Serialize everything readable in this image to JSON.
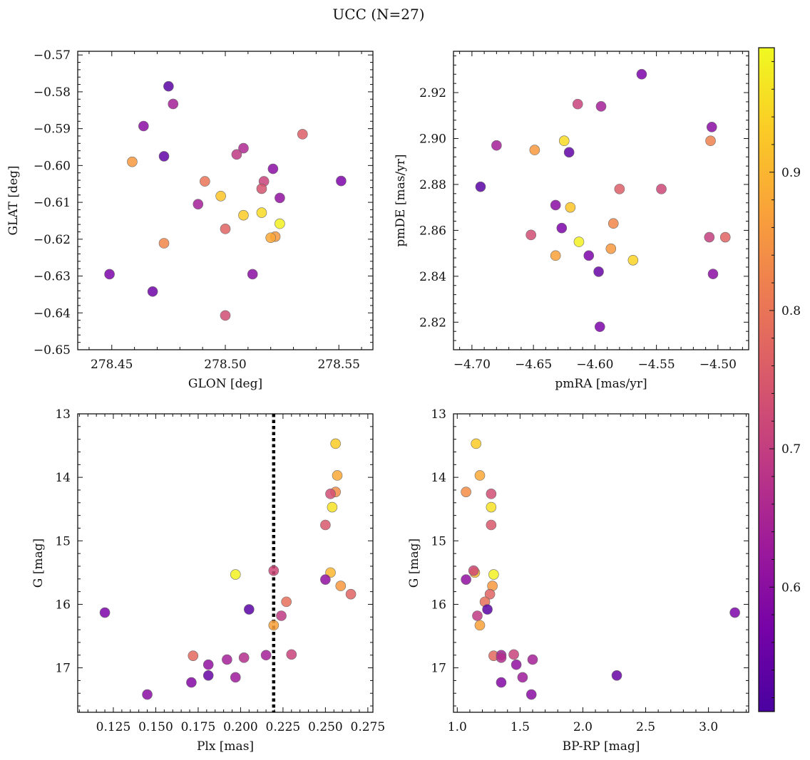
{
  "title": "UCC (N=27)",
  "colorbar": {
    "colormap": "plasma",
    "range": [
      0.51,
      0.99
    ],
    "ticks": [
      0.6,
      0.7,
      0.8,
      0.9
    ]
  },
  "chart_data": [
    {
      "type": "scatter",
      "xlabel": "GLON [deg]",
      "ylabel": "GLAT [deg]",
      "xlim": [
        278.435,
        278.565
      ],
      "ylim": [
        -0.65,
        -0.569
      ],
      "y_inverted": false,
      "xticks": [
        278.45,
        278.5,
        278.55
      ],
      "xtick_labels": [
        "278.45",
        "278.50",
        "278.55"
      ],
      "yticks": [
        -0.65,
        -0.64,
        -0.63,
        -0.62,
        -0.61,
        -0.6,
        -0.59,
        -0.58,
        -0.57
      ],
      "ytick_labels": [
        "−0.65",
        "−0.64",
        "−0.63",
        "−0.62",
        "−0.61",
        "−0.60",
        "−0.59",
        "−0.58",
        "−0.57"
      ],
      "points": [
        {
          "x": 278.475,
          "y": -0.5785,
          "c": 0.53
        },
        {
          "x": 278.477,
          "y": -0.5833,
          "c": 0.64
        },
        {
          "x": 278.464,
          "y": -0.5893,
          "c": 0.6
        },
        {
          "x": 278.534,
          "y": -0.5915,
          "c": 0.76
        },
        {
          "x": 278.508,
          "y": -0.5953,
          "c": 0.66
        },
        {
          "x": 278.505,
          "y": -0.597,
          "c": 0.69
        },
        {
          "x": 278.473,
          "y": -0.5975,
          "c": 0.54
        },
        {
          "x": 278.459,
          "y": -0.599,
          "c": 0.86
        },
        {
          "x": 278.521,
          "y": -0.6009,
          "c": 0.6
        },
        {
          "x": 278.491,
          "y": -0.6043,
          "c": 0.8
        },
        {
          "x": 278.517,
          "y": -0.6043,
          "c": 0.71
        },
        {
          "x": 278.551,
          "y": -0.6042,
          "c": 0.58
        },
        {
          "x": 278.516,
          "y": -0.6063,
          "c": 0.74
        },
        {
          "x": 278.498,
          "y": -0.6083,
          "c": 0.92
        },
        {
          "x": 278.524,
          "y": -0.6088,
          "c": 0.61
        },
        {
          "x": 278.488,
          "y": -0.6105,
          "c": 0.64
        },
        {
          "x": 278.508,
          "y": -0.6135,
          "c": 0.93
        },
        {
          "x": 278.516,
          "y": -0.6128,
          "c": 0.95
        },
        {
          "x": 278.524,
          "y": -0.6158,
          "c": 0.98
        },
        {
          "x": 278.5,
          "y": -0.6172,
          "c": 0.77
        },
        {
          "x": 278.522,
          "y": -0.6193,
          "c": 0.86
        },
        {
          "x": 278.52,
          "y": -0.6196,
          "c": 0.88
        },
        {
          "x": 278.473,
          "y": -0.6211,
          "c": 0.83
        },
        {
          "x": 278.449,
          "y": -0.6295,
          "c": 0.58
        },
        {
          "x": 278.512,
          "y": -0.6295,
          "c": 0.6
        },
        {
          "x": 278.468,
          "y": -0.6342,
          "c": 0.56
        },
        {
          "x": 278.5,
          "y": -0.6407,
          "c": 0.73
        }
      ]
    },
    {
      "type": "scatter",
      "xlabel": "pmRA [mas/yr]",
      "ylabel": "pmDE [mas/yr]",
      "xlim": [
        -4.715,
        -4.475
      ],
      "ylim": [
        2.808,
        2.938
      ],
      "y_inverted": false,
      "xticks": [
        -4.7,
        -4.65,
        -4.6,
        -4.55,
        -4.5
      ],
      "xtick_labels": [
        "−4.70",
        "−4.65",
        "−4.60",
        "−4.55",
        "−4.50"
      ],
      "yticks": [
        2.82,
        2.84,
        2.86,
        2.88,
        2.9,
        2.92
      ],
      "ytick_labels": [
        "2.82",
        "2.84",
        "2.86",
        "2.88",
        "2.90",
        "2.92"
      ],
      "points": [
        {
          "x": -4.562,
          "y": 2.928,
          "c": 0.58
        },
        {
          "x": -4.614,
          "y": 2.915,
          "c": 0.71
        },
        {
          "x": -4.595,
          "y": 2.914,
          "c": 0.64
        },
        {
          "x": -4.505,
          "y": 2.905,
          "c": 0.6
        },
        {
          "x": -4.506,
          "y": 2.899,
          "c": 0.82
        },
        {
          "x": -4.625,
          "y": 2.899,
          "c": 0.95
        },
        {
          "x": -4.68,
          "y": 2.897,
          "c": 0.64
        },
        {
          "x": -4.649,
          "y": 2.895,
          "c": 0.86
        },
        {
          "x": -4.621,
          "y": 2.894,
          "c": 0.54
        },
        {
          "x": -4.693,
          "y": 2.879,
          "c": 0.53
        },
        {
          "x": -4.546,
          "y": 2.878,
          "c": 0.72
        },
        {
          "x": -4.58,
          "y": 2.878,
          "c": 0.76
        },
        {
          "x": -4.632,
          "y": 2.871,
          "c": 0.6
        },
        {
          "x": -4.62,
          "y": 2.87,
          "c": 0.92
        },
        {
          "x": -4.585,
          "y": 2.863,
          "c": 0.83
        },
        {
          "x": -4.627,
          "y": 2.861,
          "c": 0.58
        },
        {
          "x": -4.652,
          "y": 2.858,
          "c": 0.73
        },
        {
          "x": -4.507,
          "y": 2.857,
          "c": 0.7
        },
        {
          "x": -4.494,
          "y": 2.857,
          "c": 0.77
        },
        {
          "x": -4.613,
          "y": 2.855,
          "c": 0.98
        },
        {
          "x": -4.587,
          "y": 2.852,
          "c": 0.86
        },
        {
          "x": -4.632,
          "y": 2.849,
          "c": 0.87
        },
        {
          "x": -4.605,
          "y": 2.849,
          "c": 0.58
        },
        {
          "x": -4.569,
          "y": 2.847,
          "c": 0.94
        },
        {
          "x": -4.597,
          "y": 2.842,
          "c": 0.55
        },
        {
          "x": -4.504,
          "y": 2.841,
          "c": 0.6
        },
        {
          "x": -4.596,
          "y": 2.818,
          "c": 0.58
        }
      ]
    },
    {
      "type": "scatter",
      "xlabel": "Plx [mas]",
      "ylabel": "G [mag]",
      "xlim": [
        0.104,
        0.278
      ],
      "ylim": [
        13.0,
        17.7
      ],
      "y_inverted": true,
      "vline": {
        "x": 0.2195,
        "style": "dotted"
      },
      "xticks": [
        0.125,
        0.15,
        0.175,
        0.2,
        0.225,
        0.25,
        0.275
      ],
      "xtick_labels": [
        "0.125",
        "0.150",
        "0.175",
        "0.200",
        "0.225",
        "0.250",
        "0.275"
      ],
      "yticks": [
        13,
        14,
        15,
        16,
        17
      ],
      "ytick_labels": [
        "13",
        "14",
        "15",
        "16",
        "17"
      ],
      "points": [
        {
          "x": 0.256,
          "y": 13.47,
          "c": 0.93
        },
        {
          "x": 0.257,
          "y": 13.97,
          "c": 0.88
        },
        {
          "x": 0.256,
          "y": 14.23,
          "c": 0.84
        },
        {
          "x": 0.253,
          "y": 14.26,
          "c": 0.73
        },
        {
          "x": 0.254,
          "y": 14.47,
          "c": 0.96
        },
        {
          "x": 0.25,
          "y": 14.75,
          "c": 0.75
        },
        {
          "x": 0.197,
          "y": 15.53,
          "c": 0.98
        },
        {
          "x": 0.253,
          "y": 15.5,
          "c": 0.9
        },
        {
          "x": 0.25,
          "y": 15.61,
          "c": 0.61
        },
        {
          "x": 0.2195,
          "y": 15.47,
          "c": 0.72
        },
        {
          "x": 0.259,
          "y": 15.71,
          "c": 0.86
        },
        {
          "x": 0.265,
          "y": 15.84,
          "c": 0.77
        },
        {
          "x": 0.227,
          "y": 15.96,
          "c": 0.79
        },
        {
          "x": 0.205,
          "y": 16.08,
          "c": 0.53
        },
        {
          "x": 0.224,
          "y": 16.18,
          "c": 0.69
        },
        {
          "x": 0.12,
          "y": 16.13,
          "c": 0.58
        },
        {
          "x": 0.2195,
          "y": 16.33,
          "c": 0.87
        },
        {
          "x": 0.172,
          "y": 16.81,
          "c": 0.78
        },
        {
          "x": 0.23,
          "y": 16.79,
          "c": 0.71
        },
        {
          "x": 0.215,
          "y": 16.8,
          "c": 0.64
        },
        {
          "x": 0.202,
          "y": 16.84,
          "c": 0.67
        },
        {
          "x": 0.192,
          "y": 16.87,
          "c": 0.64
        },
        {
          "x": 0.181,
          "y": 16.95,
          "c": 0.61
        },
        {
          "x": 0.181,
          "y": 17.12,
          "c": 0.55
        },
        {
          "x": 0.197,
          "y": 17.15,
          "c": 0.63
        },
        {
          "x": 0.171,
          "y": 17.23,
          "c": 0.59
        },
        {
          "x": 0.145,
          "y": 17.42,
          "c": 0.6
        }
      ]
    },
    {
      "type": "scatter",
      "xlabel": "BP-RP [mag]",
      "ylabel": "G [mag]",
      "xlim": [
        0.97,
        3.32
      ],
      "ylim": [
        13.0,
        17.7
      ],
      "y_inverted": true,
      "xticks": [
        1.0,
        1.5,
        2.0,
        2.5,
        3.0
      ],
      "xtick_labels": [
        "1.0",
        "1.5",
        "2.0",
        "2.5",
        "3.0"
      ],
      "yticks": [
        13,
        14,
        15,
        16,
        17
      ],
      "ytick_labels": [
        "13",
        "14",
        "15",
        "16",
        "17"
      ],
      "points": [
        {
          "x": 1.15,
          "y": 13.47,
          "c": 0.93
        },
        {
          "x": 1.18,
          "y": 13.97,
          "c": 0.88
        },
        {
          "x": 1.07,
          "y": 14.23,
          "c": 0.84
        },
        {
          "x": 1.27,
          "y": 14.26,
          "c": 0.73
        },
        {
          "x": 1.27,
          "y": 14.47,
          "c": 0.96
        },
        {
          "x": 1.27,
          "y": 14.75,
          "c": 0.75
        },
        {
          "x": 1.29,
          "y": 15.53,
          "c": 0.98
        },
        {
          "x": 1.14,
          "y": 15.5,
          "c": 0.9
        },
        {
          "x": 1.07,
          "y": 15.61,
          "c": 0.61
        },
        {
          "x": 1.13,
          "y": 15.47,
          "c": 0.72
        },
        {
          "x": 1.28,
          "y": 15.71,
          "c": 0.86
        },
        {
          "x": 1.26,
          "y": 15.84,
          "c": 0.77
        },
        {
          "x": 1.22,
          "y": 15.96,
          "c": 0.79
        },
        {
          "x": 1.24,
          "y": 16.08,
          "c": 0.53
        },
        {
          "x": 1.16,
          "y": 16.18,
          "c": 0.69
        },
        {
          "x": 3.21,
          "y": 16.13,
          "c": 0.58
        },
        {
          "x": 1.18,
          "y": 16.33,
          "c": 0.87
        },
        {
          "x": 1.29,
          "y": 16.81,
          "c": 0.78
        },
        {
          "x": 1.45,
          "y": 16.79,
          "c": 0.71
        },
        {
          "x": 1.35,
          "y": 16.8,
          "c": 0.64
        },
        {
          "x": 1.35,
          "y": 16.84,
          "c": 0.67
        },
        {
          "x": 1.6,
          "y": 16.87,
          "c": 0.64
        },
        {
          "x": 1.47,
          "y": 16.95,
          "c": 0.61
        },
        {
          "x": 2.27,
          "y": 17.12,
          "c": 0.55
        },
        {
          "x": 1.52,
          "y": 17.15,
          "c": 0.63
        },
        {
          "x": 1.35,
          "y": 17.23,
          "c": 0.59
        },
        {
          "x": 1.59,
          "y": 17.42,
          "c": 0.6
        }
      ]
    }
  ]
}
